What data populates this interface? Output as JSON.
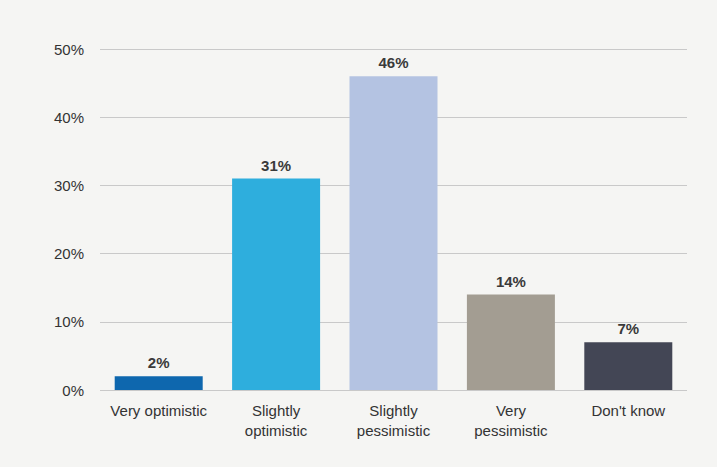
{
  "chart_data": {
    "type": "bar",
    "categories": [
      "Very optimistic",
      "Slightly\noptimistic",
      "Slightly\npessimistic",
      "Very\npessimistic",
      "Don't know"
    ],
    "values": [
      2,
      31,
      46,
      14,
      7
    ],
    "value_labels": [
      "2%",
      "31%",
      "46%",
      "14%",
      "7%"
    ],
    "data_labels": true,
    "colors": [
      "#0e67ae",
      "#2eaedd",
      "#b4c3e2",
      "#a39d92",
      "#434655"
    ],
    "ylim": [
      0,
      50
    ],
    "yticks": [
      {
        "value": 0,
        "label": "0%"
      },
      {
        "value": 10,
        "label": "10%"
      },
      {
        "value": 20,
        "label": "20%"
      },
      {
        "value": 30,
        "label": "30%"
      },
      {
        "value": 40,
        "label": "40%"
      },
      {
        "value": 50,
        "label": "50%"
      }
    ],
    "grid": true
  }
}
